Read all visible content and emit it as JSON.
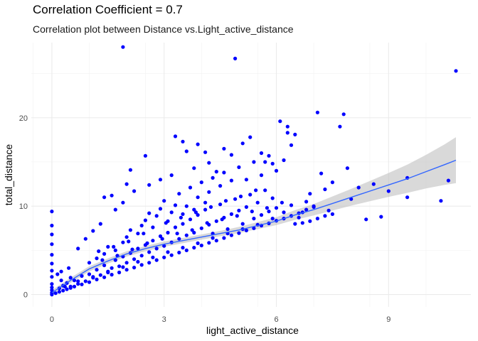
{
  "chart_data": {
    "type": "scatter",
    "title": "Correlation Coefficient = 0.7",
    "subtitle": "Correlation plot between Distance vs.Light_active_distance",
    "xlabel": "light_active_distance",
    "ylabel": "total_distance",
    "xlim": [
      -0.55,
      11.2
    ],
    "ylim": [
      -1.4,
      28.5
    ],
    "x_ticks": [
      0,
      3,
      6,
      9
    ],
    "y_ticks": [
      0,
      10,
      20
    ],
    "grid": true,
    "point_color": "#0000ff",
    "smooth_color": "#3366ff",
    "band_color": "#bfbfbf",
    "smooth": {
      "x": [
        0,
        0.5,
        1,
        1.5,
        2,
        2.5,
        3,
        3.5,
        4,
        4.5,
        5,
        5.5,
        6,
        6.5,
        7,
        7.5,
        8,
        8.5,
        9,
        9.5,
        10,
        10.5,
        10.8
      ],
      "y": [
        0.2,
        1.6,
        2.9,
        3.8,
        4.6,
        5.2,
        5.7,
        6.1,
        6.5,
        6.9,
        7.3,
        7.8,
        8.3,
        9.0,
        9.6,
        10.3,
        11.0,
        11.7,
        12.4,
        13.1,
        13.9,
        14.7,
        15.2
      ],
      "band": [
        0.3,
        0.3,
        0.3,
        0.3,
        0.3,
        0.3,
        0.3,
        0.3,
        0.3,
        0.3,
        0.35,
        0.4,
        0.45,
        0.55,
        0.65,
        0.8,
        0.95,
        1.15,
        1.35,
        1.6,
        1.9,
        2.3,
        2.6
      ]
    },
    "points": [
      [
        0,
        0
      ],
      [
        0,
        0.2
      ],
      [
        0,
        0.5
      ],
      [
        0,
        0.8
      ],
      [
        0,
        1.2
      ],
      [
        0,
        2.0
      ],
      [
        0,
        2.7
      ],
      [
        0,
        3.5
      ],
      [
        0,
        4.5
      ],
      [
        0,
        5.7
      ],
      [
        0,
        6.8
      ],
      [
        0,
        7.8
      ],
      [
        0,
        9.4
      ],
      [
        0.1,
        0.15
      ],
      [
        0.2,
        0.3
      ],
      [
        0.3,
        0.45
      ],
      [
        0.4,
        0.6
      ],
      [
        0.5,
        0.75
      ],
      [
        0.6,
        0.9
      ],
      [
        0.8,
        1.15
      ],
      [
        1.0,
        1.4
      ],
      [
        1.2,
        1.7
      ],
      [
        1.4,
        1.95
      ],
      [
        1.6,
        2.25
      ],
      [
        1.8,
        2.5
      ],
      [
        2.0,
        2.8
      ],
      [
        2.2,
        3.05
      ],
      [
        2.4,
        3.35
      ],
      [
        2.6,
        3.6
      ],
      [
        2.8,
        3.9
      ],
      [
        3.0,
        4.2
      ],
      [
        3.2,
        4.45
      ],
      [
        3.4,
        4.75
      ],
      [
        3.6,
        5.0
      ],
      [
        3.8,
        5.3
      ],
      [
        4.0,
        5.55
      ],
      [
        4.2,
        5.85
      ],
      [
        4.4,
        6.1
      ],
      [
        4.6,
        6.4
      ],
      [
        4.8,
        6.7
      ],
      [
        5.0,
        6.95
      ],
      [
        5.2,
        7.25
      ],
      [
        5.4,
        7.5
      ],
      [
        5.6,
        7.8
      ],
      [
        5.8,
        8.05
      ],
      [
        6.0,
        8.35
      ],
      [
        6.2,
        8.6
      ],
      [
        6.4,
        8.9
      ],
      [
        6.6,
        9.2
      ],
      [
        6.7,
        9.3
      ],
      [
        0.2,
        0.7
      ],
      [
        0.3,
        1.0
      ],
      [
        0.4,
        1.3
      ],
      [
        0.5,
        0.9
      ],
      [
        0.6,
        1.6
      ],
      [
        0.7,
        1.2
      ],
      [
        0.8,
        2.1
      ],
      [
        0.9,
        1.5
      ],
      [
        1.0,
        2.3
      ],
      [
        1.1,
        1.9
      ],
      [
        1.2,
        2.8
      ],
      [
        1.3,
        2.2
      ],
      [
        1.4,
        3.3
      ],
      [
        1.5,
        2.6
      ],
      [
        1.6,
        3.0
      ],
      [
        1.7,
        3.9
      ],
      [
        1.8,
        3.2
      ],
      [
        1.9,
        4.3
      ],
      [
        2.0,
        3.6
      ],
      [
        2.1,
        4.7
      ],
      [
        2.2,
        4.0
      ],
      [
        2.3,
        5.2
      ],
      [
        2.4,
        4.4
      ],
      [
        2.5,
        5.6
      ],
      [
        2.6,
        4.8
      ],
      [
        2.7,
        6.1
      ],
      [
        2.8,
        5.2
      ],
      [
        2.9,
        6.6
      ],
      [
        3.0,
        5.5
      ],
      [
        3.1,
        7.0
      ],
      [
        3.2,
        5.9
      ],
      [
        3.3,
        7.6
      ],
      [
        3.4,
        6.3
      ],
      [
        3.5,
        8.0
      ],
      [
        3.6,
        6.7
      ],
      [
        3.7,
        8.5
      ],
      [
        3.8,
        7.0
      ],
      [
        3.9,
        9.0
      ],
      [
        4.0,
        7.5
      ],
      [
        4.1,
        9.6
      ],
      [
        4.2,
        7.9
      ],
      [
        4.3,
        6.9
      ],
      [
        4.4,
        8.3
      ],
      [
        4.5,
        10.2
      ],
      [
        4.6,
        8.7
      ],
      [
        4.7,
        7.4
      ],
      [
        4.8,
        9.1
      ],
      [
        4.9,
        10.8
      ],
      [
        5.0,
        9.5
      ],
      [
        5.1,
        8.0
      ],
      [
        5.2,
        9.9
      ],
      [
        5.3,
        11.3
      ],
      [
        5.4,
        8.6
      ],
      [
        5.5,
        10.4
      ],
      [
        5.6,
        9.0
      ],
      [
        5.7,
        11.8
      ],
      [
        5.8,
        9.4
      ],
      [
        5.9,
        10.9
      ],
      [
        6.0,
        9.8
      ],
      [
        1.0,
        3.6
      ],
      [
        1.2,
        4.1
      ],
      [
        1.4,
        4.6
      ],
      [
        1.5,
        5.4
      ],
      [
        1.7,
        5.0
      ],
      [
        1.9,
        5.9
      ],
      [
        2.0,
        6.5
      ],
      [
        2.1,
        7.3
      ],
      [
        2.3,
        6.9
      ],
      [
        2.4,
        7.8
      ],
      [
        2.5,
        8.4
      ],
      [
        2.6,
        9.2
      ],
      [
        2.7,
        7.6
      ],
      [
        2.8,
        8.9
      ],
      [
        2.9,
        9.7
      ],
      [
        3.0,
        10.6
      ],
      [
        3.1,
        8.3
      ],
      [
        3.2,
        9.3
      ],
      [
        3.3,
        10.1
      ],
      [
        3.4,
        11.4
      ],
      [
        3.5,
        9.1
      ],
      [
        3.6,
        10.0
      ],
      [
        3.7,
        12.1
      ],
      [
        3.8,
        9.6
      ],
      [
        3.9,
        11.0
      ],
      [
        4.0,
        12.7
      ],
      [
        4.1,
        10.4
      ],
      [
        4.2,
        11.6
      ],
      [
        4.3,
        13.2
      ],
      [
        4.5,
        12.3
      ],
      [
        4.6,
        13.8
      ],
      [
        4.8,
        12.9
      ],
      [
        5.0,
        14.4
      ],
      [
        5.2,
        13.0
      ],
      [
        5.4,
        15.0
      ],
      [
        5.6,
        13.5
      ],
      [
        5.8,
        15.7
      ],
      [
        6.0,
        14.0
      ],
      [
        6.2,
        15.2
      ],
      [
        6.4,
        16.9
      ],
      [
        0.7,
        5.2
      ],
      [
        0.9,
        6.3
      ],
      [
        1.1,
        7.2
      ],
      [
        1.3,
        8.0
      ],
      [
        1.4,
        11.0
      ],
      [
        1.6,
        11.2
      ],
      [
        1.7,
        9.6
      ],
      [
        1.9,
        10.4
      ],
      [
        2.0,
        12.5
      ],
      [
        2.1,
        14.1
      ],
      [
        2.2,
        11.7
      ],
      [
        2.5,
        15.7
      ],
      [
        2.6,
        12.4
      ],
      [
        2.9,
        13.0
      ],
      [
        3.2,
        13.5
      ],
      [
        3.3,
        17.9
      ],
      [
        3.5,
        17.3
      ],
      [
        3.6,
        16.2
      ],
      [
        3.8,
        14.3
      ],
      [
        3.9,
        17.0
      ],
      [
        4.1,
        16.1
      ],
      [
        4.2,
        14.9
      ],
      [
        4.4,
        13.9
      ],
      [
        4.6,
        16.5
      ],
      [
        4.8,
        15.8
      ],
      [
        5.1,
        17.1
      ],
      [
        5.3,
        17.8
      ],
      [
        5.6,
        16.0
      ],
      [
        5.7,
        15.0
      ],
      [
        5.9,
        14.8
      ],
      [
        6.1,
        19.6
      ],
      [
        6.3,
        19.0
      ],
      [
        6.3,
        18.3
      ],
      [
        6.5,
        18.1
      ],
      [
        6.8,
        10.5
      ],
      [
        6.9,
        11.4
      ],
      [
        7.0,
        10.0
      ],
      [
        7.1,
        20.6
      ],
      [
        7.2,
        13.7
      ],
      [
        7.3,
        11.9
      ],
      [
        7.4,
        9.5
      ],
      [
        7.5,
        12.7
      ],
      [
        7.7,
        19.0
      ],
      [
        7.8,
        20.4
      ],
      [
        7.9,
        14.3
      ],
      [
        8.0,
        10.8
      ],
      [
        8.2,
        12.1
      ],
      [
        8.4,
        8.5
      ],
      [
        8.6,
        12.5
      ],
      [
        8.8,
        8.8
      ],
      [
        9.0,
        11.7
      ],
      [
        9.5,
        13.2
      ],
      [
        9.5,
        11.0
      ],
      [
        10.4,
        10.6
      ],
      [
        10.6,
        12.9
      ],
      [
        10.8,
        25.3
      ],
      [
        1.9,
        28.0
      ],
      [
        4.9,
        26.7
      ],
      [
        6.5,
        8.0
      ],
      [
        6.7,
        8.1
      ],
      [
        6.9,
        8.3
      ],
      [
        7.1,
        8.6
      ],
      [
        7.3,
        8.9
      ],
      [
        7.5,
        9.1
      ],
      [
        6.6,
        8.7
      ],
      [
        6.8,
        9.6
      ],
      [
        7.0,
        9.9
      ],
      [
        6.2,
        9.3
      ],
      [
        6.4,
        10.1
      ],
      [
        5.9,
        8.6
      ],
      [
        5.5,
        7.9
      ],
      [
        5.1,
        7.4
      ],
      [
        4.7,
        6.9
      ],
      [
        4.3,
        6.4
      ],
      [
        3.9,
        5.8
      ],
      [
        3.5,
        5.3
      ],
      [
        3.1,
        4.8
      ],
      [
        2.7,
        4.2
      ],
      [
        2.3,
        3.7
      ],
      [
        1.9,
        3.1
      ],
      [
        1.5,
        2.5
      ],
      [
        1.1,
        2.0
      ],
      [
        0.7,
        1.5
      ],
      [
        0.35,
        0.9
      ],
      [
        0.25,
        1.6
      ],
      [
        0.15,
        2.3
      ],
      [
        0.45,
        3.0
      ],
      [
        0.25,
        2.6
      ],
      [
        0.5,
        1.9
      ],
      [
        1.35,
        3.9
      ],
      [
        1.75,
        4.4
      ],
      [
        2.15,
        5.1
      ],
      [
        2.55,
        5.8
      ],
      [
        2.95,
        6.3
      ],
      [
        3.35,
        6.9
      ],
      [
        3.75,
        7.3
      ],
      [
        4.15,
        8.1
      ],
      [
        4.55,
        8.5
      ],
      [
        4.95,
        8.9
      ],
      [
        5.35,
        9.4
      ],
      [
        5.75,
        9.8
      ],
      [
        6.15,
        10.4
      ],
      [
        3.05,
        8.1
      ],
      [
        3.45,
        8.7
      ],
      [
        3.85,
        9.3
      ],
      [
        4.25,
        9.9
      ],
      [
        4.65,
        10.6
      ],
      [
        5.05,
        11.1
      ],
      [
        5.45,
        11.8
      ],
      [
        2.45,
        6.9
      ],
      [
        2.05,
        6.0
      ],
      [
        1.65,
        5.4
      ],
      [
        1.25,
        4.9
      ]
    ]
  }
}
